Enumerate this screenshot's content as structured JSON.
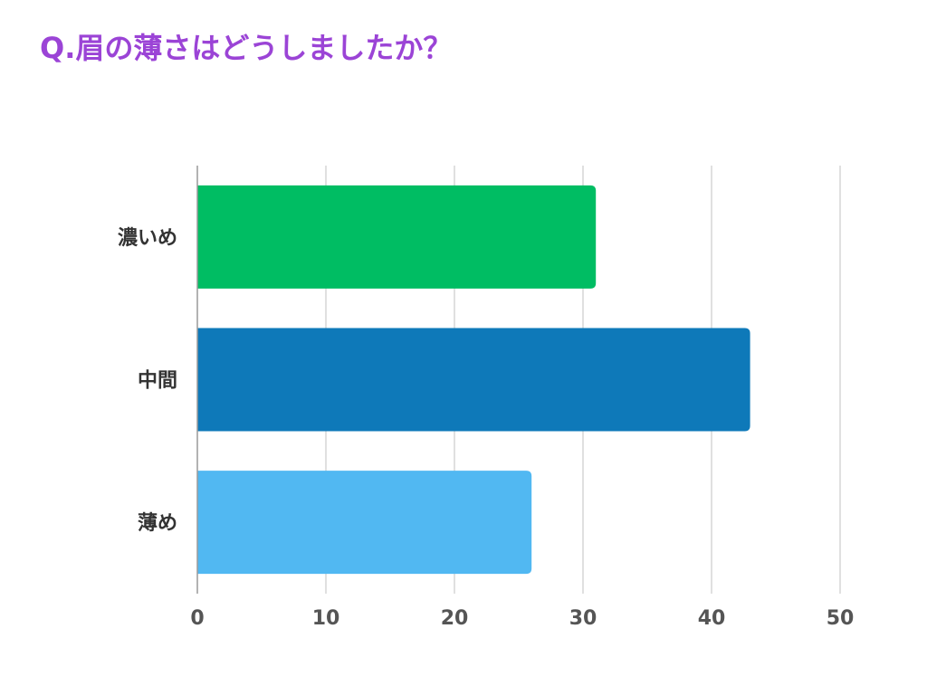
{
  "chart_data": {
    "type": "bar",
    "orientation": "horizontal",
    "title": "Q.眉の薄さはどうしましたか？",
    "categories": [
      "濃いめ",
      "中間",
      "薄め"
    ],
    "values": [
      31,
      43,
      26
    ],
    "colors": [
      "#00bd63",
      "#0e79b9",
      "#51b8f2"
    ],
    "xlim": [
      0,
      50
    ],
    "xticks": [
      "0",
      "10",
      "20",
      "30",
      "40",
      "50"
    ],
    "xlabel": "",
    "ylabel": "",
    "grid": true,
    "title_color": "#9b44d6"
  }
}
